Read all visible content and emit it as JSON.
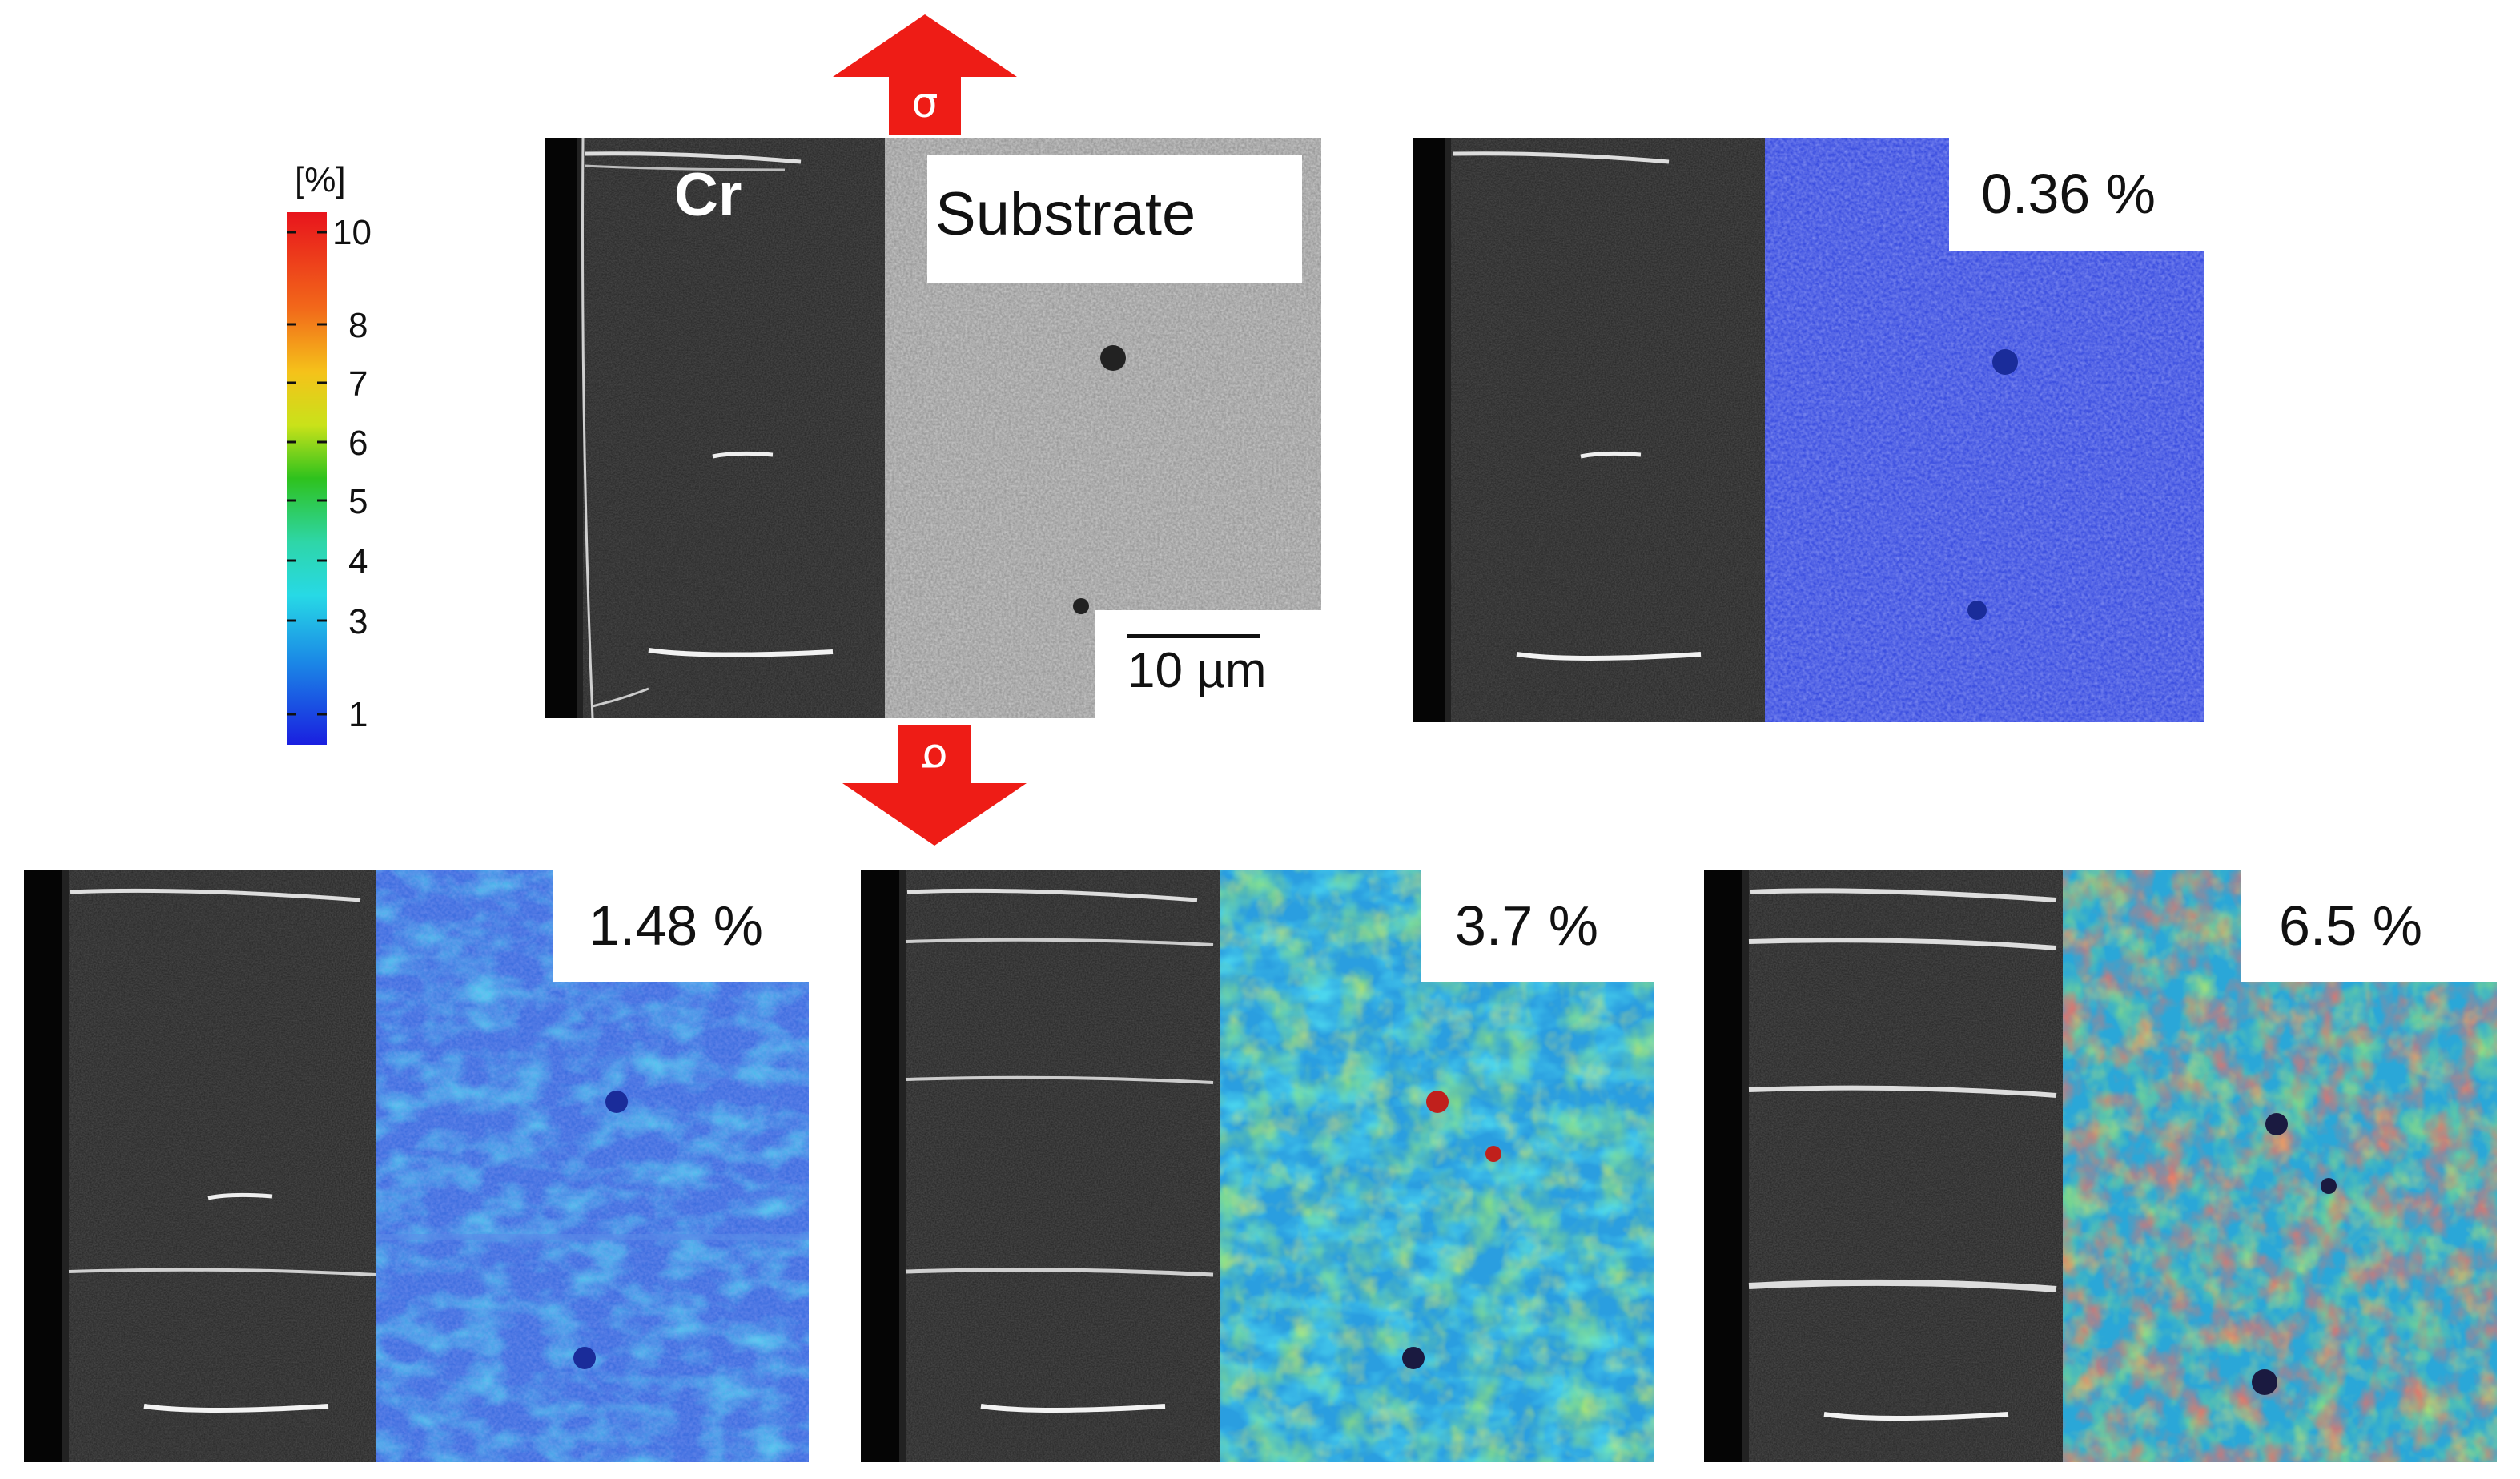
{
  "stress_symbol": "σ",
  "colorbar": {
    "unit": "[%]",
    "ticks": [
      "10",
      "8",
      "7",
      "6",
      "5",
      "4",
      "3",
      "1"
    ],
    "colors_top_to_bottom": [
      "#e8141c",
      "#f39a14",
      "#f5e21a",
      "#33c21d",
      "#2ed6a0",
      "#27d9e6",
      "#1b8be6",
      "#1c2ae0"
    ]
  },
  "reference_panel": {
    "phase_left": "Cr",
    "phase_right": "Substrate",
    "scale_bar": "10 µm"
  },
  "strain_panels": [
    {
      "label": "0.36 %"
    },
    {
      "label": "1.48 %"
    },
    {
      "label": "3.7 %"
    },
    {
      "label": "6.5 %"
    }
  ],
  "colors": {
    "arrow": "#ee1c16",
    "background": "#ffffff"
  }
}
